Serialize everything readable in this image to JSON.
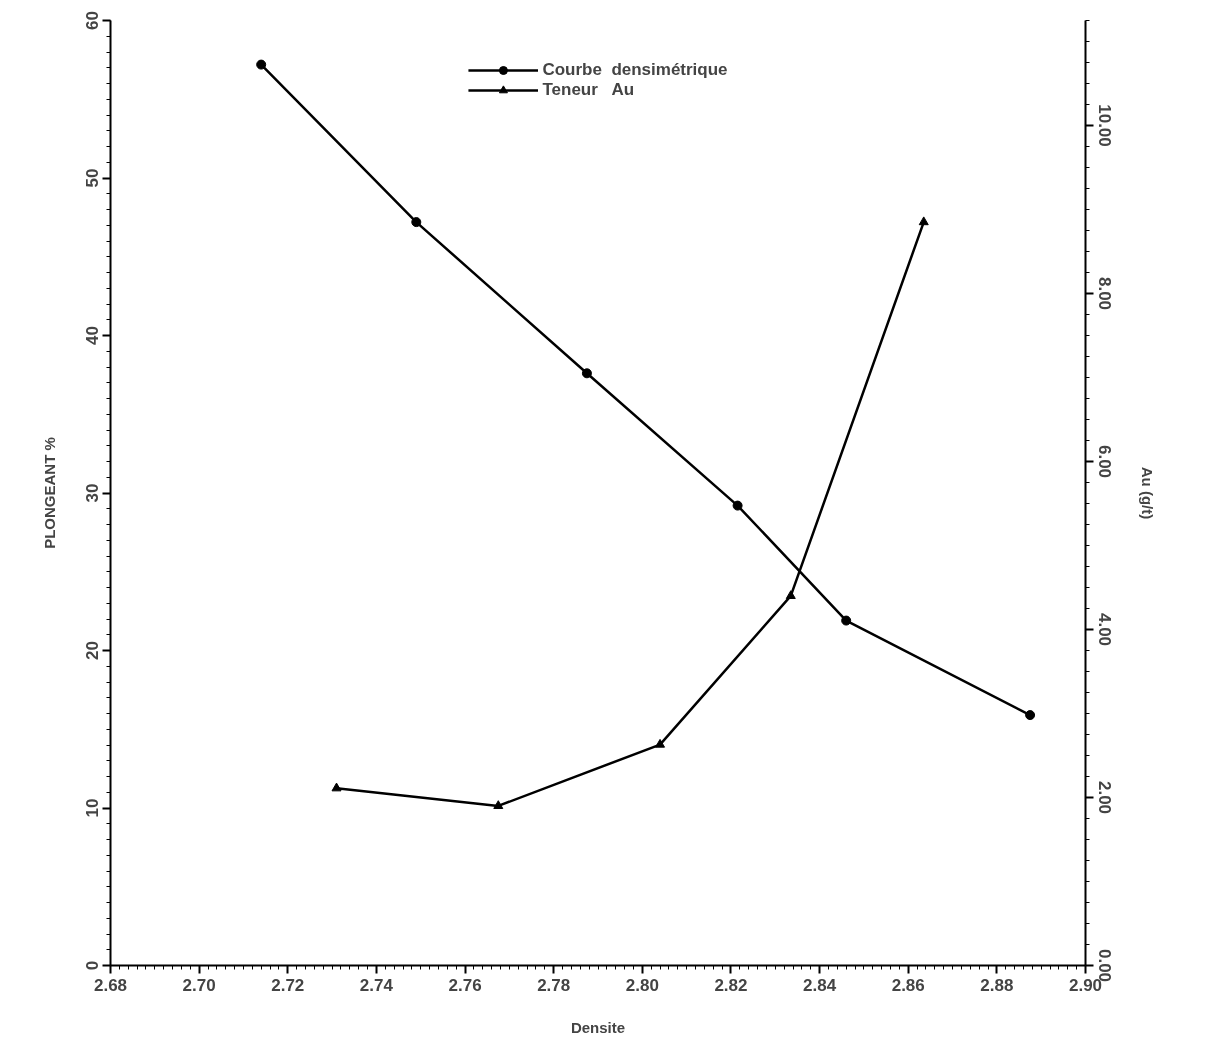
{
  "chart_data": {
    "type": "line",
    "xlabel": "Densite",
    "ylabel": "PLONGEANT %",
    "y2label": "Au (g/t)",
    "xlim": [
      2.68,
      2.9
    ],
    "xticks": [
      {
        "value": 2.68,
        "label": "2.68"
      },
      {
        "value": 2.7,
        "label": "2.70"
      },
      {
        "value": 2.72,
        "label": "2.72"
      },
      {
        "value": 2.74,
        "label": "2.74"
      },
      {
        "value": 2.76,
        "label": "2.76"
      },
      {
        "value": 2.78,
        "label": "2.78"
      },
      {
        "value": 2.8,
        "label": "2.80"
      },
      {
        "value": 2.82,
        "label": "2.82"
      },
      {
        "value": 2.84,
        "label": "2.84"
      },
      {
        "value": 2.86,
        "label": "2.86"
      },
      {
        "value": 2.88,
        "label": "2.88"
      },
      {
        "value": 2.9,
        "label": "2.90"
      }
    ],
    "ylim": [
      0,
      60
    ],
    "yticks": [
      0,
      10,
      20,
      30,
      40,
      50,
      60
    ],
    "y2lim": [
      0,
      11.25
    ],
    "y2ticks": [
      {
        "value": 0,
        "label": "0.00"
      },
      {
        "value": 2,
        "label": "2.00"
      },
      {
        "value": 4,
        "label": "4.00"
      },
      {
        "value": 6,
        "label": "6.00"
      },
      {
        "value": 8,
        "label": "8.00"
      },
      {
        "value": 10,
        "label": "10.00"
      }
    ],
    "grid": false,
    "legend": "top",
    "line_style": "solid",
    "series": [
      {
        "name": "Courbe  densimétrique",
        "color": "#000000",
        "marker": "circle",
        "x": [
          2.714,
          2.749,
          2.7875,
          2.8215,
          2.846,
          2.8875
        ],
        "values": [
          57.2,
          47.2,
          37.6,
          29.2,
          21.9,
          15.9
        ]
      },
      {
        "name": "Teneur   Au",
        "color": "#000000",
        "marker": "triangle",
        "axis": "y2",
        "x": [
          2.731,
          2.7675,
          2.804,
          2.8335,
          2.8635
        ],
        "values": [
          2.11,
          1.9,
          2.63,
          4.4,
          8.85
        ]
      }
    ]
  }
}
